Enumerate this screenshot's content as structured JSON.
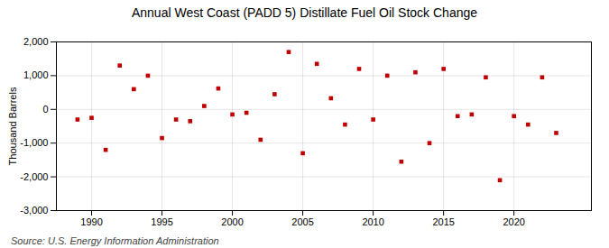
{
  "chart_data": {
    "type": "scatter",
    "title": "Annual West Coast (PADD 5) Distillate Fuel Oil Stock Change",
    "ylabel": "Thousand Barrels",
    "source": "Source: U.S. Energy Information Administration",
    "x": [
      1989,
      1990,
      1991,
      1992,
      1993,
      1994,
      1995,
      1996,
      1997,
      1998,
      1999,
      2000,
      2001,
      2002,
      2003,
      2004,
      2005,
      2006,
      2007,
      2008,
      2009,
      2010,
      2011,
      2012,
      2013,
      2014,
      2015,
      2016,
      2017,
      2018,
      2019,
      2020,
      2021,
      2022,
      2023
    ],
    "values": [
      -300,
      -250,
      -1200,
      1300,
      600,
      1000,
      -850,
      -300,
      -350,
      100,
      620,
      -150,
      -100,
      -900,
      450,
      1700,
      -1300,
      1350,
      330,
      -450,
      1200,
      -300,
      1000,
      -1550,
      1100,
      -1000,
      1200,
      -200,
      -150,
      950,
      -2100,
      -200,
      -450,
      950,
      -700
    ],
    "color": "#c00000",
    "marker": "square",
    "xlim": [
      1987.5,
      2025.5
    ],
    "xticks": [
      1990,
      1995,
      2000,
      2005,
      2010,
      2015,
      2020
    ],
    "ylim": [
      -3000,
      2000
    ],
    "yticks": [
      {
        "value": -3000,
        "label": "-3,000"
      },
      {
        "value": -2000,
        "label": "-2,000"
      },
      {
        "value": -1000,
        "label": "-1,000"
      },
      0,
      {
        "value": 1000,
        "label": "1,000"
      },
      {
        "value": 2000,
        "label": "2,000"
      }
    ],
    "grid": true
  }
}
